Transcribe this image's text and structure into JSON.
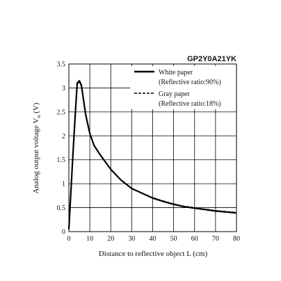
{
  "chart_data": {
    "type": "line",
    "model_label": "GP2Y0A21YK",
    "xlabel": "Distance to reflective object L (cm)",
    "ylabel": "Analog output voltage V",
    "ylabel_subscript": "o",
    "ylabel_unit": " (V)",
    "xlim": [
      0,
      80
    ],
    "ylim": [
      0,
      3.5
    ],
    "xticks": [
      "0",
      "10",
      "20",
      "30",
      "40",
      "50",
      "60",
      "70",
      "80"
    ],
    "yticks": [
      "0",
      "0.5",
      "1",
      "1.5",
      "2",
      "2.5",
      "3",
      "3.5"
    ],
    "grid": true,
    "legend_position": "top-right",
    "series": [
      {
        "style": "solid",
        "legend_line1": "White paper",
        "legend_line2": "(Reflective ratio:90%)",
        "x": [
          0,
          1,
          2,
          3,
          4,
          5,
          6,
          7,
          8,
          10,
          12,
          15,
          20,
          25,
          30,
          35,
          40,
          45,
          50,
          55,
          60,
          65,
          70,
          75,
          80
        ],
        "y": [
          0.05,
          0.85,
          1.65,
          2.4,
          3.1,
          3.15,
          3.05,
          2.75,
          2.45,
          2.05,
          1.8,
          1.6,
          1.3,
          1.07,
          0.9,
          0.8,
          0.7,
          0.63,
          0.57,
          0.52,
          0.49,
          0.46,
          0.43,
          0.41,
          0.39
        ]
      },
      {
        "style": "dashed",
        "legend_line1": "Gray paper",
        "legend_line2": "(Reflective ratio:18%)",
        "x": [
          0,
          1,
          2,
          3,
          4,
          5,
          6,
          7,
          8,
          10,
          12,
          15,
          20,
          25,
          30,
          35,
          40,
          45,
          50,
          55,
          60,
          65,
          70,
          75,
          80
        ],
        "y": [
          0.05,
          0.85,
          1.65,
          2.4,
          3.08,
          3.13,
          3.03,
          2.73,
          2.43,
          2.04,
          1.79,
          1.6,
          1.3,
          1.07,
          0.9,
          0.8,
          0.71,
          0.64,
          0.58,
          0.53,
          0.5,
          0.47,
          0.44,
          0.42,
          0.4
        ]
      }
    ]
  }
}
